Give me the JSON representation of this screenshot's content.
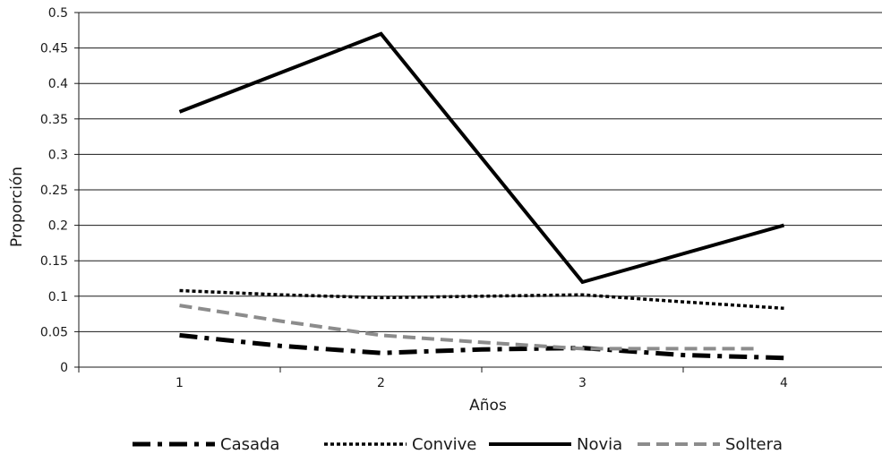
{
  "chart_data": {
    "type": "line",
    "xlabel": "Años",
    "ylabel": "Proporción",
    "categories": [
      "1",
      "2",
      "3",
      "4"
    ],
    "x_range": [
      0.5,
      4.5
    ],
    "ylim": [
      0,
      0.5
    ],
    "yticks": [
      0,
      0.05,
      0.1,
      0.15,
      0.2,
      0.25,
      0.3,
      0.35,
      0.4,
      0.45,
      0.5
    ],
    "ytick_labels": [
      "0",
      "0.05",
      "0.1",
      "0.15",
      "0.2",
      "0.25",
      "0.3",
      "0.35",
      "0.4",
      "0.45",
      "0.5"
    ],
    "grid": true,
    "legend_position": "bottom",
    "series": [
      {
        "name": "Casada",
        "style": "dash-dot",
        "color": "#000000",
        "x": [
          1,
          1.5,
          2,
          2.5,
          3,
          3.5,
          4
        ],
        "values": [
          0.045,
          0.03,
          0.02,
          0.025,
          0.027,
          0.017,
          0.013
        ]
      },
      {
        "name": "Convive",
        "style": "dotted",
        "color": "#000000",
        "x": [
          1,
          1.5,
          2,
          2.5,
          3,
          3.5,
          4
        ],
        "values": [
          0.108,
          0.102,
          0.098,
          0.1,
          0.102,
          0.092,
          0.083
        ]
      },
      {
        "name": "Novia",
        "style": "solid",
        "color": "#000000",
        "x": [
          1,
          2,
          3,
          4
        ],
        "values": [
          0.36,
          0.47,
          0.12,
          0.2
        ]
      },
      {
        "name": "Soltera",
        "style": "dashed",
        "color": "#8c8c8c",
        "x": [
          1,
          1.5,
          2,
          2.5,
          3,
          3.5,
          3.85
        ],
        "values": [
          0.087,
          0.065,
          0.045,
          0.035,
          0.026,
          0.026,
          0.026
        ]
      }
    ]
  }
}
